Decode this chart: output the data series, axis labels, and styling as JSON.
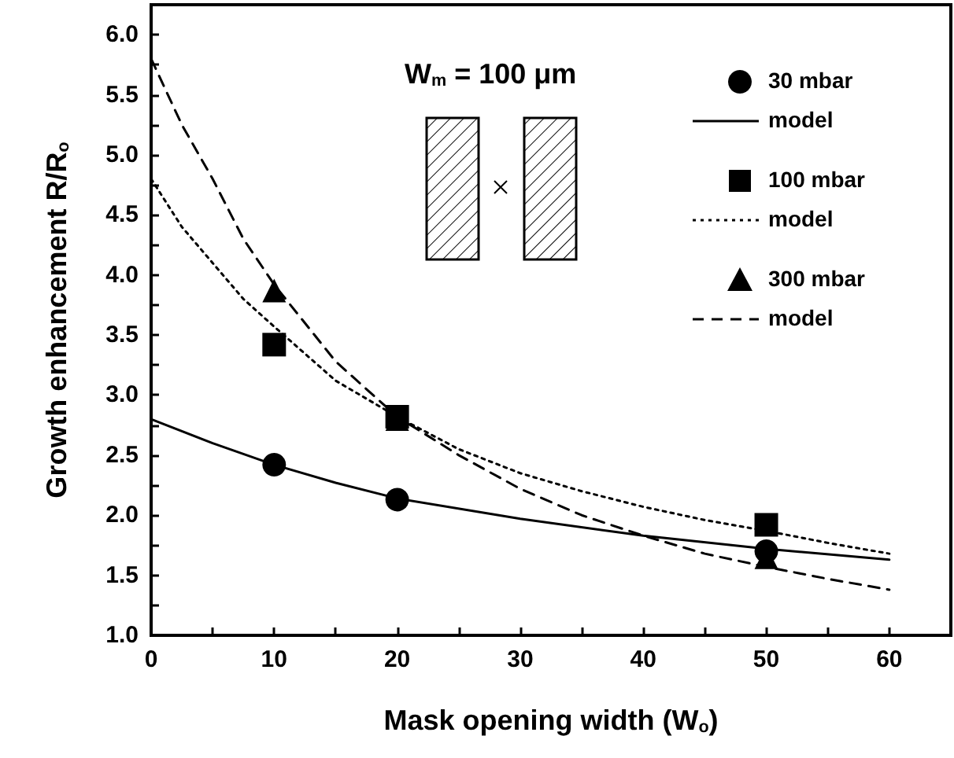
{
  "chart_data": {
    "type": "scatter",
    "xlabel": "Mask opening width (W$_{o}$)",
    "ylabel": "Growth enhancement R/R$_{o}$",
    "annotations": [
      "W$_{m}$ = 100 μm"
    ],
    "xlim": [
      0,
      65
    ],
    "xticks": [
      0,
      {
        "value": 5,
        "label": null
      },
      10,
      {
        "value": 15,
        "label": null
      },
      20,
      {
        "value": 25,
        "label": null
      },
      30,
      {
        "value": 35,
        "label": null
      },
      40,
      {
        "value": 45,
        "label": null
      },
      50,
      {
        "value": 55,
        "label": null
      },
      60
    ],
    "ylim": [
      1,
      6.25
    ],
    "yticks": [
      {
        "value": 1,
        "label": "1.0"
      },
      {
        "value": 1.25,
        "label": null
      },
      {
        "value": 1.5,
        "label": "1.5"
      },
      {
        "value": 1.75,
        "label": null
      },
      {
        "value": 2,
        "label": "2.0"
      },
      {
        "value": 2.25,
        "label": null
      },
      {
        "value": 2.5,
        "label": "2.5"
      },
      {
        "value": 2.75,
        "label": null
      },
      {
        "value": 3,
        "label": "3.0"
      },
      {
        "value": 3.25,
        "label": null
      },
      {
        "value": 3.5,
        "label": "3.5"
      },
      {
        "value": 3.75,
        "label": null
      },
      {
        "value": 4,
        "label": "4.0"
      },
      {
        "value": 4.25,
        "label": null
      },
      {
        "value": 4.5,
        "label": "4.5"
      },
      {
        "value": 4.75,
        "label": null
      },
      {
        "value": 5,
        "label": "5.0"
      },
      {
        "value": 5.25,
        "label": null
      },
      {
        "value": 5.5,
        "label": "5.5"
      },
      {
        "value": 5.75,
        "label": null
      },
      {
        "value": 6,
        "label": "6.0"
      }
    ],
    "grid": false,
    "legend": "top right",
    "series": [
      {
        "name": "30 mbar",
        "marker": "circle",
        "color": "#000000",
        "x": [
          10,
          20,
          50
        ],
        "values": [
          2.42,
          2.13,
          1.7
        ]
      },
      {
        "name": "model",
        "type": "line",
        "marker": "none",
        "line_style": "solid",
        "color": "#000000",
        "x": [
          0,
          5,
          10,
          15,
          20,
          30,
          40,
          50,
          60
        ],
        "values": [
          2.8,
          2.6,
          2.42,
          2.27,
          2.14,
          1.97,
          1.83,
          1.72,
          1.63
        ]
      },
      {
        "name": "100 mbar",
        "marker": "square",
        "color": "#000000",
        "x": [
          10,
          20,
          50
        ],
        "values": [
          3.42,
          2.82,
          1.92
        ]
      },
      {
        "name": "model",
        "type": "line",
        "marker": "none",
        "line_style": "dotted",
        "color": "#000000",
        "x": [
          0,
          2.5,
          5,
          7.5,
          10,
          15,
          20,
          25,
          30,
          35,
          40,
          45,
          50,
          55,
          60
        ],
        "values": [
          4.8,
          4.4,
          4.1,
          3.8,
          3.57,
          3.12,
          2.82,
          2.55,
          2.35,
          2.2,
          2.07,
          1.96,
          1.87,
          1.77,
          1.68
        ]
      },
      {
        "name": "300 mbar",
        "marker": "triangle",
        "color": "#000000",
        "x": [
          10,
          20,
          50
        ],
        "values": [
          3.87,
          2.8,
          1.65
        ]
      },
      {
        "name": "model",
        "type": "line",
        "marker": "none",
        "line_style": "dashed",
        "color": "#000000",
        "x": [
          0,
          2.5,
          5,
          7.5,
          10,
          15,
          20,
          25,
          30,
          35,
          40,
          45,
          50,
          55,
          60
        ],
        "values": [
          5.8,
          5.25,
          4.8,
          4.3,
          3.92,
          3.28,
          2.82,
          2.5,
          2.22,
          2.0,
          1.83,
          1.68,
          1.57,
          1.47,
          1.38
        ]
      }
    ]
  }
}
